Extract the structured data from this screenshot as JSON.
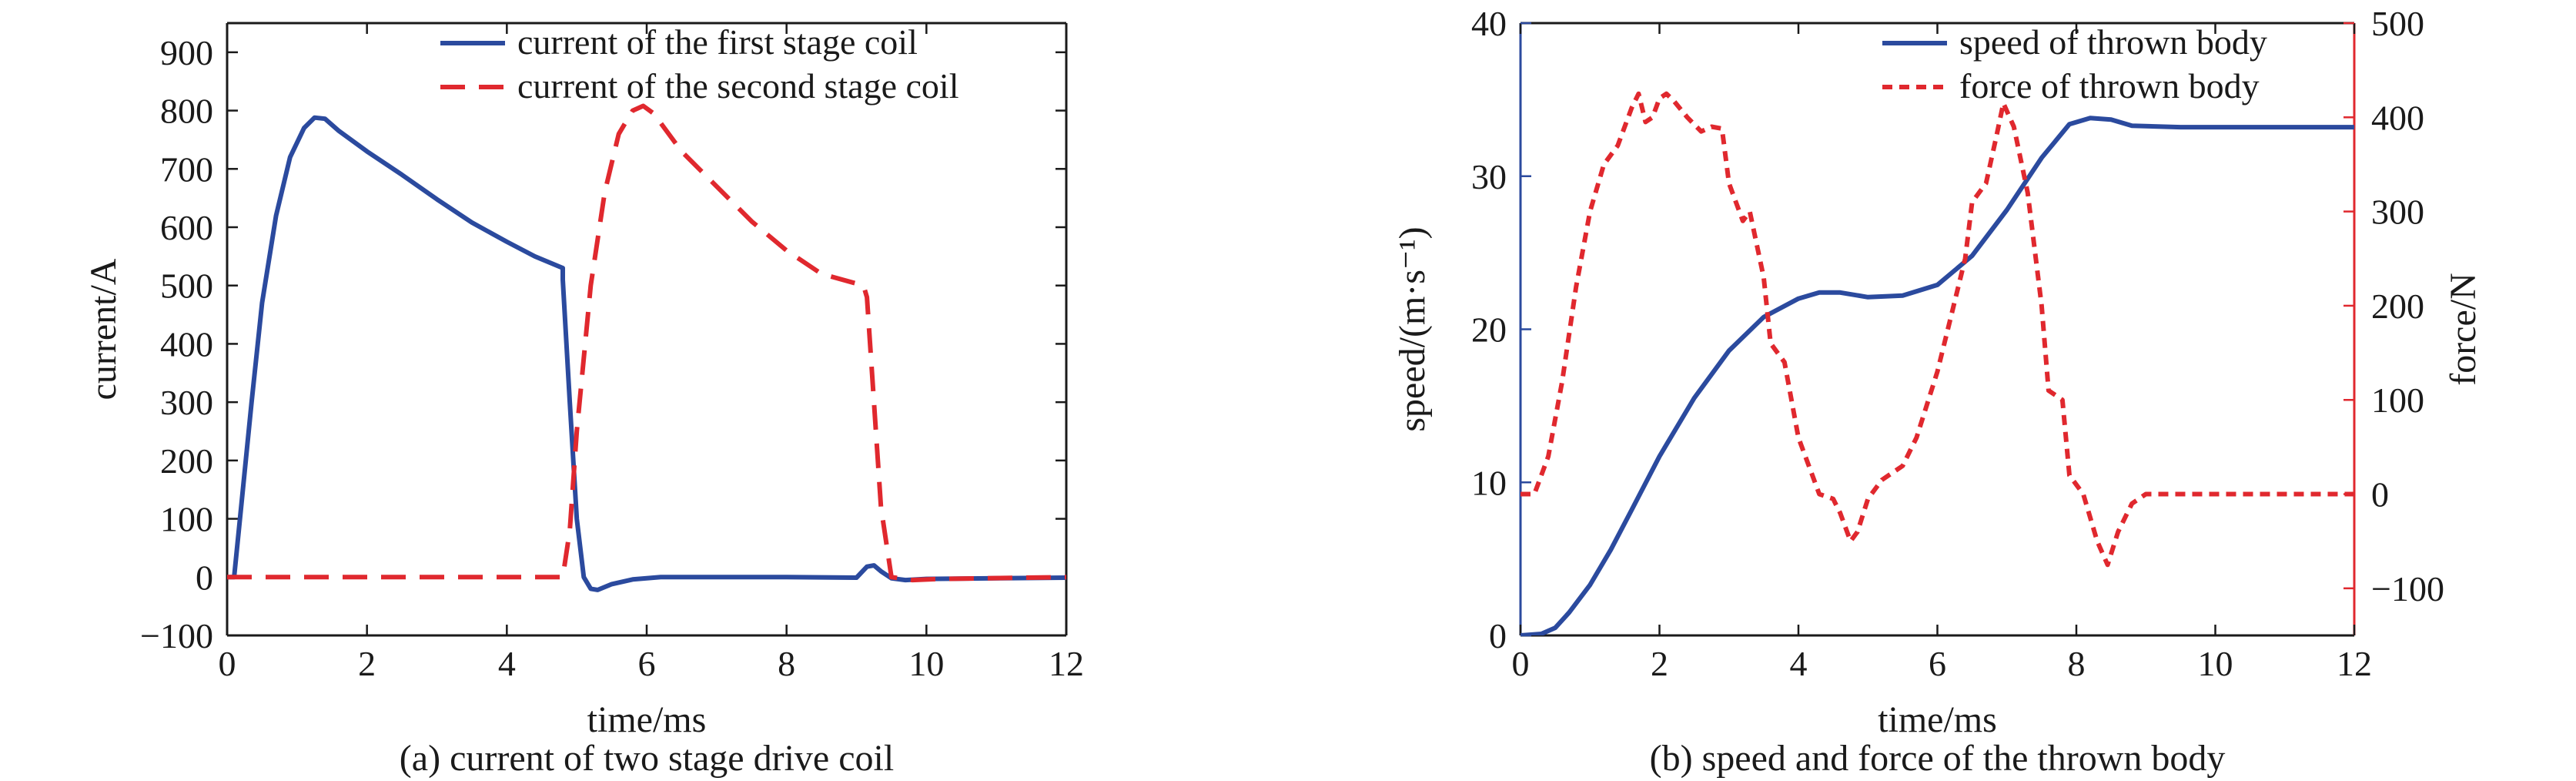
{
  "chart_data": [
    {
      "type": "line",
      "caption": "(a) current of two stage drive coil",
      "xlabel": "time/ms",
      "ylabel": "current/A",
      "xlim": [
        0,
        12
      ],
      "ylim": [
        -100,
        950
      ],
      "xticks": [
        0,
        2,
        4,
        6,
        8,
        10,
        12
      ],
      "yticks": [
        -100,
        0,
        100,
        200,
        300,
        400,
        500,
        600,
        700,
        800,
        900
      ],
      "xtick_labels": [
        "0",
        "2",
        "4",
        "6",
        "8",
        "10",
        "12"
      ],
      "ytick_labels": [
        "−100",
        "0",
        "100",
        "200",
        "300",
        "400",
        "500",
        "600",
        "700",
        "800",
        "900"
      ],
      "grid": false,
      "legend_position": "top-right",
      "series": [
        {
          "name": "current of the first stage coil",
          "color": "#2b4a9e",
          "style": "solid",
          "points": [
            [
              0,
              0
            ],
            [
              0.1,
              0
            ],
            [
              0.2,
              120
            ],
            [
              0.35,
              300
            ],
            [
              0.5,
              470
            ],
            [
              0.7,
              620
            ],
            [
              0.9,
              720
            ],
            [
              1.1,
              770
            ],
            [
              1.25,
              788
            ],
            [
              1.4,
              786
            ],
            [
              1.6,
              765
            ],
            [
              2.0,
              730
            ],
            [
              2.5,
              690
            ],
            [
              3.0,
              648
            ],
            [
              3.5,
              608
            ],
            [
              4.0,
              575
            ],
            [
              4.4,
              550
            ],
            [
              4.8,
              530
            ],
            [
              4.8,
              510
            ],
            [
              4.9,
              300
            ],
            [
              5.0,
              100
            ],
            [
              5.1,
              0
            ],
            [
              5.2,
              -20
            ],
            [
              5.3,
              -22
            ],
            [
              5.5,
              -12
            ],
            [
              5.8,
              -4
            ],
            [
              6.2,
              0
            ],
            [
              7.0,
              0
            ],
            [
              8.0,
              0
            ],
            [
              9.0,
              -1
            ],
            [
              9.15,
              18
            ],
            [
              9.25,
              20
            ],
            [
              9.35,
              10
            ],
            [
              9.5,
              -2
            ],
            [
              9.7,
              -5
            ],
            [
              10.0,
              -3
            ],
            [
              12.0,
              -1
            ]
          ]
        },
        {
          "name": "current of the second stage coil",
          "color": "#e0282e",
          "style": "dashed",
          "points": [
            [
              0,
              0
            ],
            [
              4.8,
              0
            ],
            [
              4.9,
              80
            ],
            [
              5.0,
              250
            ],
            [
              5.2,
              500
            ],
            [
              5.4,
              660
            ],
            [
              5.6,
              760
            ],
            [
              5.8,
              800
            ],
            [
              5.95,
              808
            ],
            [
              6.1,
              795
            ],
            [
              6.5,
              730
            ],
            [
              7.0,
              670
            ],
            [
              7.5,
              610
            ],
            [
              8.0,
              560
            ],
            [
              8.5,
              520
            ],
            [
              9.1,
              500
            ],
            [
              9.15,
              480
            ],
            [
              9.25,
              300
            ],
            [
              9.35,
              120
            ],
            [
              9.5,
              0
            ],
            [
              9.8,
              -5
            ],
            [
              10.2,
              -3
            ],
            [
              12.0,
              0
            ]
          ]
        }
      ]
    },
    {
      "type": "line",
      "caption": "(b) speed and force of the thrown body",
      "xlabel": "time/ms",
      "ylabel": "speed/(m·s⁻¹)",
      "y2label": "force/N",
      "xlim": [
        0,
        12
      ],
      "ylim": [
        0,
        40
      ],
      "y2lim": [
        -150,
        500
      ],
      "xticks": [
        0,
        2,
        4,
        6,
        8,
        10,
        12
      ],
      "yticks": [
        0,
        10,
        20,
        30,
        40
      ],
      "y2ticks": [
        -100,
        0,
        100,
        200,
        300,
        400,
        500
      ],
      "xtick_labels": [
        "0",
        "2",
        "4",
        "6",
        "8",
        "10",
        "12"
      ],
      "ytick_labels": [
        "0",
        "10",
        "20",
        "30",
        "40"
      ],
      "y2tick_labels": [
        "−100",
        "0",
        "100",
        "200",
        "300",
        "400",
        "500"
      ],
      "left_axis_color": "#2b4a9e",
      "right_axis_color": "#e0282e",
      "grid": false,
      "legend_position": "top-right",
      "series": [
        {
          "name": "speed of thrown body",
          "color": "#2b4a9e",
          "style": "solid",
          "axis": "left",
          "points": [
            [
              0,
              0
            ],
            [
              0.3,
              0.1
            ],
            [
              0.5,
              0.5
            ],
            [
              0.7,
              1.5
            ],
            [
              1.0,
              3.3
            ],
            [
              1.3,
              5.6
            ],
            [
              1.6,
              8.2
            ],
            [
              2.0,
              11.7
            ],
            [
              2.5,
              15.5
            ],
            [
              3.0,
              18.6
            ],
            [
              3.5,
              20.8
            ],
            [
              4.0,
              22.0
            ],
            [
              4.3,
              22.4
            ],
            [
              4.6,
              22.4
            ],
            [
              5.0,
              22.1
            ],
            [
              5.5,
              22.2
            ],
            [
              6.0,
              22.9
            ],
            [
              6.5,
              24.8
            ],
            [
              7.0,
              27.8
            ],
            [
              7.5,
              31.2
            ],
            [
              7.9,
              33.4
            ],
            [
              8.2,
              33.8
            ],
            [
              8.5,
              33.7
            ],
            [
              8.8,
              33.3
            ],
            [
              9.5,
              33.2
            ],
            [
              12.0,
              33.2
            ]
          ]
        },
        {
          "name": "force of thrown body",
          "color": "#e0282e",
          "style": "dotted",
          "axis": "right",
          "points": [
            [
              0,
              0
            ],
            [
              0.2,
              0
            ],
            [
              0.4,
              40
            ],
            [
              0.6,
              120
            ],
            [
              0.8,
              220
            ],
            [
              1.0,
              300
            ],
            [
              1.2,
              350
            ],
            [
              1.4,
              370
            ],
            [
              1.6,
              410
            ],
            [
              1.7,
              425
            ],
            [
              1.8,
              395
            ],
            [
              1.9,
              400
            ],
            [
              2.0,
              420
            ],
            [
              2.1,
              425
            ],
            [
              2.2,
              418
            ],
            [
              2.4,
              400
            ],
            [
              2.6,
              385
            ],
            [
              2.75,
              390
            ],
            [
              2.9,
              388
            ],
            [
              3.0,
              330
            ],
            [
              3.1,
              310
            ],
            [
              3.2,
              290
            ],
            [
              3.3,
              300
            ],
            [
              3.5,
              230
            ],
            [
              3.6,
              160
            ],
            [
              3.8,
              140
            ],
            [
              4.0,
              60
            ],
            [
              4.2,
              20
            ],
            [
              4.3,
              0
            ],
            [
              4.5,
              -5
            ],
            [
              4.6,
              -20
            ],
            [
              4.75,
              -50
            ],
            [
              4.85,
              -40
            ],
            [
              5.0,
              -5
            ],
            [
              5.2,
              15
            ],
            [
              5.5,
              30
            ],
            [
              5.7,
              60
            ],
            [
              6.0,
              130
            ],
            [
              6.2,
              190
            ],
            [
              6.4,
              250
            ],
            [
              6.5,
              310
            ],
            [
              6.7,
              330
            ],
            [
              6.85,
              380
            ],
            [
              6.95,
              415
            ],
            [
              7.1,
              390
            ],
            [
              7.3,
              320
            ],
            [
              7.5,
              200
            ],
            [
              7.6,
              110
            ],
            [
              7.8,
              100
            ],
            [
              7.9,
              20
            ],
            [
              8.1,
              0
            ],
            [
              8.3,
              -50
            ],
            [
              8.45,
              -75
            ],
            [
              8.6,
              -40
            ],
            [
              8.8,
              -10
            ],
            [
              9.0,
              0
            ],
            [
              12.0,
              0
            ]
          ]
        }
      ]
    }
  ]
}
